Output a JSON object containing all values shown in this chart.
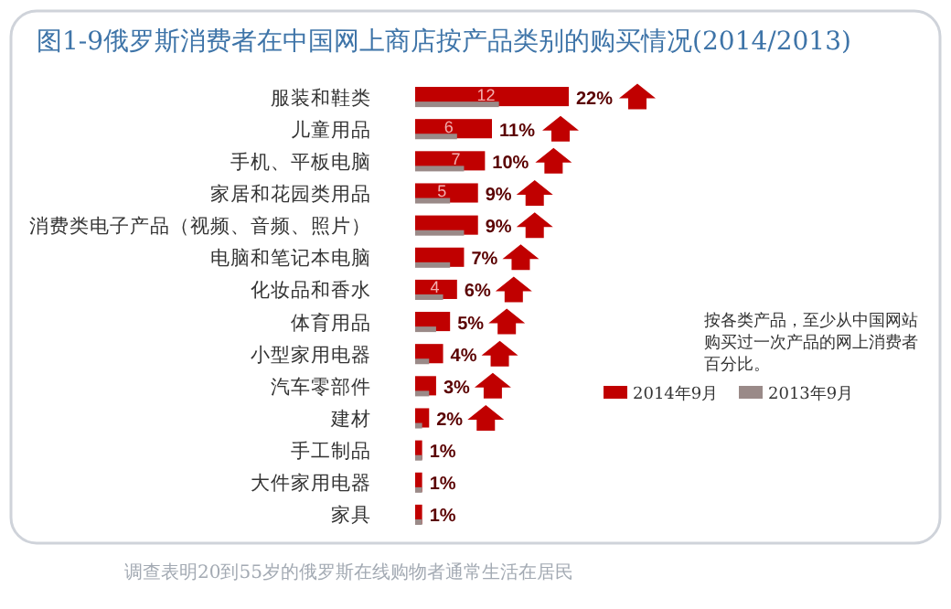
{
  "chart_data": {
    "type": "bar",
    "orientation": "horizontal",
    "title": "图1-9俄罗斯消费者在中国网上商店按产品类别的购买情况(2014/2013)",
    "categories": [
      "服装和鞋类",
      "儿童用品",
      "手机、平板电脑",
      "家居和花园类用品",
      "消费类电子产品（视频、音频、照片）",
      "电脑和笔记本电脑",
      "化妆品和香水",
      "体育用品",
      "小型家用电器",
      "汽车零部件",
      "建材",
      "手工制品",
      "大件家用电器",
      "家具"
    ],
    "series": [
      {
        "name": "2014年9月",
        "color": "#c00000",
        "values": [
          22,
          11,
          10,
          9,
          9,
          7,
          6,
          5,
          4,
          3,
          2,
          1,
          1,
          1
        ],
        "value_labels": [
          "22%",
          "11%",
          "10%",
          "9%",
          "9%",
          "7%",
          "6%",
          "5%",
          "4%",
          "3%",
          "2%",
          "1%",
          "1%",
          "1%"
        ]
      },
      {
        "name": "2013年9月",
        "color": "#9a8a88",
        "values": [
          12,
          6,
          7,
          5,
          7,
          5,
          4,
          3,
          2,
          2,
          1,
          1,
          1,
          1
        ],
        "value_labels": [
          "12",
          "6",
          "7",
          "5",
          null,
          null,
          "4",
          null,
          null,
          null,
          null,
          null,
          null,
          null
        ]
      }
    ],
    "legend": "right",
    "annotations": [
      "按各类产品，至少从中国网站购买过一次产品的网上消费者百分比。",
      "调查表明20到55岁的俄罗斯在线购物者通常生活在居民"
    ]
  }
}
